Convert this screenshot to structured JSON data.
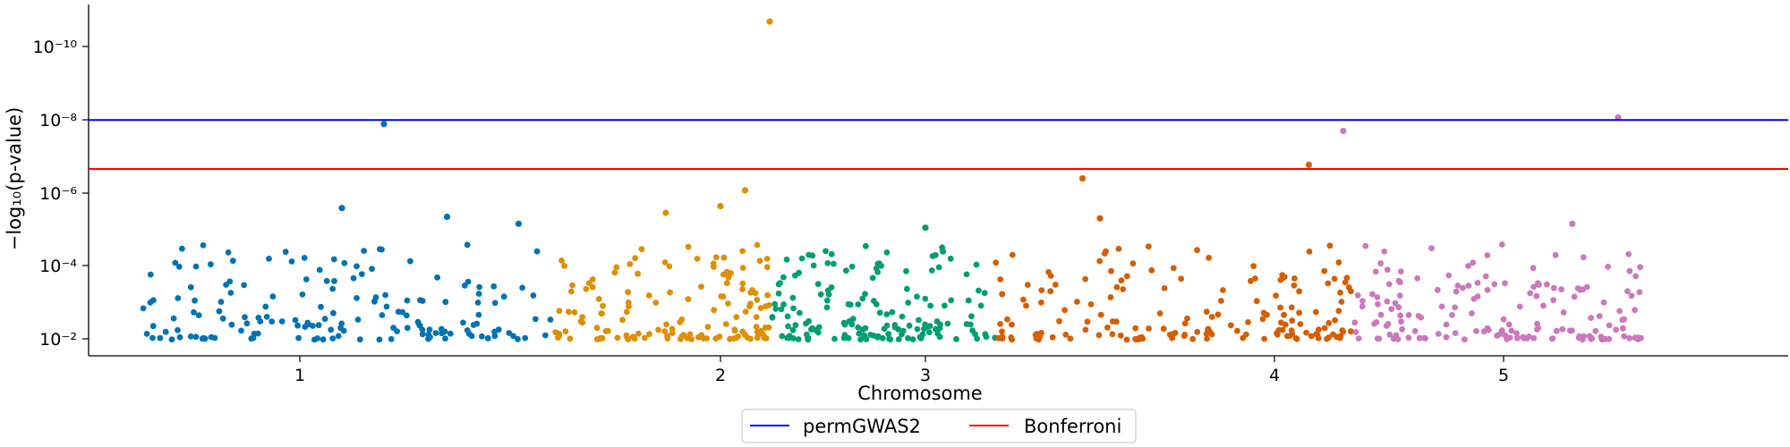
{
  "chart_data": {
    "type": "scatter",
    "title": "",
    "xlabel": "Chromosome",
    "ylabel": "−log₁₀(p-value)",
    "y_scale": "log",
    "y_inverted": true,
    "ylim": [
      0.03,
      1e-11
    ],
    "y_ticks": [
      {
        "value": 1e-10,
        "label": "10⁻¹⁰"
      },
      {
        "value": 1e-08,
        "label": "10⁻⁸"
      },
      {
        "value": 1e-06,
        "label": "10⁻⁶"
      },
      {
        "value": 0.0001,
        "label": "10⁻⁴"
      },
      {
        "value": 0.01,
        "label": "10⁻²"
      }
    ],
    "x_ticks": [
      "1",
      "2",
      "3",
      "4",
      "5"
    ],
    "grid": false,
    "legend_position": "bottom-center",
    "thresholds": [
      {
        "name": "permGWAS2",
        "value": 1e-08,
        "color": "#0000ff"
      },
      {
        "name": "Bonferroni",
        "value": 2.2e-07,
        "color": "#ff0000"
      }
    ],
    "series": [
      {
        "color": "#0173b2",
        "top_points": [
          [
            1.1,
            2.6e-06
          ],
          [
            1.2,
            1.3e-08
          ],
          [
            1.35,
            4.5e-06
          ],
          [
            1.52,
            7e-06
          ]
        ]
      },
      {
        "color": "#de8f05",
        "top_points": [
          [
            1.87,
            3.5e-06
          ],
          [
            2.0,
            2.3e-06
          ],
          [
            2.12,
            8.5e-07
          ],
          [
            2.24,
            2e-11
          ]
        ]
      },
      {
        "color": "#029e73",
        "top_points": [
          [
            3.0,
            9e-06
          ],
          [
            3.05,
            4e-05
          ]
        ]
      },
      {
        "color": "#d55e00",
        "top_points": [
          [
            3.45,
            4e-07
          ],
          [
            3.5,
            5e-06
          ],
          [
            4.15,
            1.7e-07
          ]
        ]
      },
      {
        "color": "#cc78bc",
        "top_points": [
          [
            4.3,
            2e-08
          ],
          [
            5.5,
            8.5e-09
          ],
          [
            5.3,
            7e-06
          ]
        ]
      }
    ]
  }
}
